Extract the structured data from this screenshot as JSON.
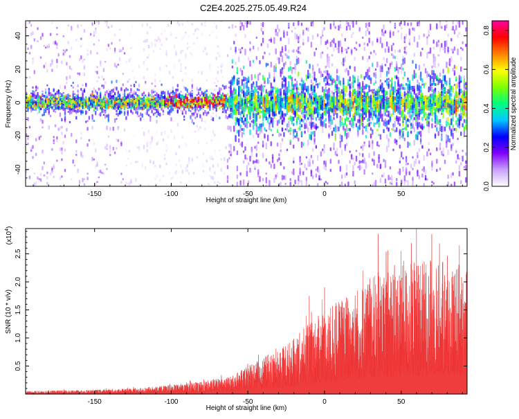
{
  "title": "C2E4.2025.275.05.49.R24",
  "chart_data": [
    {
      "type": "heatmap",
      "xlabel": "Height of straight line (km)",
      "ylabel": "Frequency (Hz)",
      "xlim": [
        -195,
        93
      ],
      "ylim": [
        -50,
        49
      ],
      "xticks": [
        -150,
        -100,
        -50,
        0,
        50
      ],
      "yticks": [
        -40,
        -20,
        0,
        20,
        40
      ],
      "colorbar": {
        "label": "Normalized spectral amplitude",
        "range": [
          0,
          0.85
        ],
        "ticks": [
          0,
          0.2,
          0.4,
          0.6,
          0.8
        ],
        "tick_labels": [
          "0.0",
          "0.2",
          "0.4",
          "0.6",
          "0.8"
        ],
        "colormap": [
          "#ffffff",
          "#c8a0ff",
          "#8000ff",
          "#0000ff",
          "#00c8ff",
          "#00ff80",
          "#80ff00",
          "#ffff00",
          "#ff8000",
          "#ff0000",
          "#ff00a0"
        ]
      },
      "features": {
        "central_band_freq_hz": [
          -5,
          5
        ],
        "central_band_x_range_km": [
          -195,
          -62
        ],
        "turbulent_region_x_km": [
          -62,
          93
        ],
        "peak_amplitude": 0.84
      }
    },
    {
      "type": "area",
      "xlabel": "Height of straight line (km)",
      "ylabel": "SNR (10 * v/v)",
      "y_multiplier_label": "(x10",
      "y_multiplier_exp": "4",
      "xlim": [
        -195,
        93
      ],
      "ylim": [
        0,
        2.95
      ],
      "xticks": [
        -150,
        -100,
        -50,
        0,
        50
      ],
      "yticks": [
        0.5,
        1.0,
        1.5,
        2.0,
        2.5
      ],
      "ytick_labels": [
        "0.5",
        "1.0",
        "1.5",
        "2.0",
        "2.5"
      ],
      "color": "#ee3333",
      "envelope_x": [
        -195,
        -150,
        -120,
        -100,
        -80,
        -60,
        -50,
        -40,
        -30,
        -20,
        -10,
        0,
        10,
        20,
        30,
        40,
        50,
        60,
        70,
        80,
        93
      ],
      "envelope_y": [
        0.05,
        0.07,
        0.1,
        0.15,
        0.2,
        0.3,
        0.45,
        0.6,
        0.75,
        0.9,
        1.15,
        1.35,
        1.55,
        1.75,
        1.9,
        2.05,
        2.15,
        2.2,
        2.2,
        2.15,
        2.1
      ],
      "peak_values": [
        {
          "x": -10,
          "y": 1.75
        },
        {
          "x": 0,
          "y": 1.9
        },
        {
          "x": 25,
          "y": 2.2
        },
        {
          "x": 35,
          "y": 2.85
        },
        {
          "x": 50,
          "y": 2.55
        },
        {
          "x": 60,
          "y": 2.95
        },
        {
          "x": 70,
          "y": 2.85
        },
        {
          "x": 88,
          "y": 2.65
        }
      ]
    }
  ]
}
